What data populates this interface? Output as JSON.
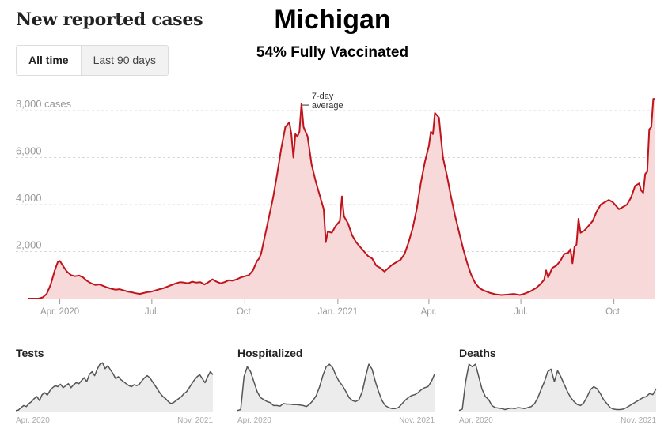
{
  "header": {
    "title": "New reported cases",
    "state": "Michigan",
    "vaccination": "54% Fully Vaccinated"
  },
  "toggle": {
    "options": [
      {
        "label": "All time",
        "active": true
      },
      {
        "label": "Last 90 days",
        "active": false
      }
    ]
  },
  "colors": {
    "line": "#c0141c",
    "fill": "#f8d9d9",
    "small_line": "#555555",
    "small_fill": "#ececec",
    "grid": "#d8d8d8",
    "axis_text": "#999999"
  },
  "chart_data": [
    {
      "type": "area",
      "title": "New reported cases",
      "ylabel": "cases",
      "ylim": [
        0,
        8000
      ],
      "y_ticks": [
        {
          "value": 2000,
          "label": "2,000"
        },
        {
          "value": 4000,
          "label": "4,000"
        },
        {
          "value": 6000,
          "label": "6,000"
        },
        {
          "value": 8000,
          "label": "8,000 cases"
        }
      ],
      "x_ticks": [
        {
          "day": 31,
          "label": "Apr. 2020"
        },
        {
          "day": 122,
          "label": "Jul."
        },
        {
          "day": 214,
          "label": "Oct."
        },
        {
          "day": 306,
          "label": "Jan. 2021"
        },
        {
          "day": 396,
          "label": "Apr."
        },
        {
          "day": 487,
          "label": "Jul."
        },
        {
          "day": 579,
          "label": "Oct."
        }
      ],
      "x_domain_days": [
        0,
        627
      ],
      "x_note": "day 0 = Mar. 1, 2020",
      "annotation": {
        "text": [
          "7-day",
          "average"
        ],
        "day": 270,
        "value": 8300
      },
      "grid": true,
      "series": [
        {
          "name": "7-day average",
          "points": [
            [
              0,
              0
            ],
            [
              10,
              0
            ],
            [
              14,
              50
            ],
            [
              18,
              200
            ],
            [
              22,
              600
            ],
            [
              26,
              1200
            ],
            [
              29,
              1550
            ],
            [
              31,
              1600
            ],
            [
              34,
              1400
            ],
            [
              38,
              1150
            ],
            [
              42,
              1000
            ],
            [
              46,
              950
            ],
            [
              50,
              980
            ],
            [
              54,
              900
            ],
            [
              58,
              750
            ],
            [
              62,
              650
            ],
            [
              66,
              580
            ],
            [
              70,
              600
            ],
            [
              74,
              540
            ],
            [
              78,
              470
            ],
            [
              82,
              420
            ],
            [
              86,
              380
            ],
            [
              90,
              400
            ],
            [
              94,
              350
            ],
            [
              98,
              300
            ],
            [
              102,
              270
            ],
            [
              106,
              230
            ],
            [
              110,
              200
            ],
            [
              114,
              240
            ],
            [
              118,
              280
            ],
            [
              122,
              300
            ],
            [
              128,
              380
            ],
            [
              134,
              450
            ],
            [
              140,
              550
            ],
            [
              146,
              650
            ],
            [
              150,
              700
            ],
            [
              154,
              680
            ],
            [
              158,
              650
            ],
            [
              162,
              720
            ],
            [
              166,
              680
            ],
            [
              170,
              700
            ],
            [
              174,
              600
            ],
            [
              178,
              700
            ],
            [
              182,
              820
            ],
            [
              186,
              720
            ],
            [
              190,
              650
            ],
            [
              194,
              700
            ],
            [
              198,
              780
            ],
            [
              202,
              760
            ],
            [
              206,
              820
            ],
            [
              210,
              900
            ],
            [
              214,
              950
            ],
            [
              218,
              1000
            ],
            [
              222,
              1200
            ],
            [
              226,
              1600
            ],
            [
              228,
              1700
            ],
            [
              230,
              1900
            ],
            [
              234,
              2700
            ],
            [
              238,
              3500
            ],
            [
              242,
              4300
            ],
            [
              246,
              5300
            ],
            [
              250,
              6400
            ],
            [
              254,
              7300
            ],
            [
              258,
              7500
            ],
            [
              260,
              7000
            ],
            [
              262,
              6000
            ],
            [
              264,
              7000
            ],
            [
              266,
              6900
            ],
            [
              268,
              7100
            ],
            [
              270,
              8300
            ],
            [
              272,
              7300
            ],
            [
              276,
              6900
            ],
            [
              280,
              5700
            ],
            [
              284,
              5000
            ],
            [
              288,
              4400
            ],
            [
              292,
              3800
            ],
            [
              294,
              2400
            ],
            [
              296,
              2850
            ],
            [
              300,
              2800
            ],
            [
              304,
              3100
            ],
            [
              308,
              3300
            ],
            [
              310,
              4350
            ],
            [
              312,
              3500
            ],
            [
              316,
              3200
            ],
            [
              320,
              2700
            ],
            [
              324,
              2400
            ],
            [
              328,
              2200
            ],
            [
              332,
              2000
            ],
            [
              336,
              1800
            ],
            [
              340,
              1700
            ],
            [
              344,
              1400
            ],
            [
              348,
              1300
            ],
            [
              352,
              1150
            ],
            [
              356,
              1300
            ],
            [
              360,
              1450
            ],
            [
              364,
              1550
            ],
            [
              368,
              1650
            ],
            [
              372,
              1900
            ],
            [
              376,
              2400
            ],
            [
              380,
              3000
            ],
            [
              384,
              3800
            ],
            [
              388,
              4900
            ],
            [
              392,
              5800
            ],
            [
              396,
              6500
            ],
            [
              398,
              7100
            ],
            [
              400,
              7000
            ],
            [
              402,
              7900
            ],
            [
              404,
              7800
            ],
            [
              406,
              7700
            ],
            [
              408,
              6800
            ],
            [
              410,
              6000
            ],
            [
              414,
              5200
            ],
            [
              418,
              4300
            ],
            [
              422,
              3500
            ],
            [
              426,
              2800
            ],
            [
              430,
              2100
            ],
            [
              434,
              1500
            ],
            [
              438,
              1000
            ],
            [
              442,
              650
            ],
            [
              446,
              450
            ],
            [
              450,
              350
            ],
            [
              456,
              250
            ],
            [
              462,
              180
            ],
            [
              468,
              150
            ],
            [
              474,
              170
            ],
            [
              480,
              200
            ],
            [
              486,
              150
            ],
            [
              490,
              200
            ],
            [
              496,
              300
            ],
            [
              502,
              450
            ],
            [
              506,
              600
            ],
            [
              510,
              800
            ],
            [
              512,
              1200
            ],
            [
              514,
              900
            ],
            [
              518,
              1300
            ],
            [
              522,
              1400
            ],
            [
              526,
              1600
            ],
            [
              530,
              1900
            ],
            [
              534,
              1950
            ],
            [
              536,
              2100
            ],
            [
              538,
              1500
            ],
            [
              540,
              2200
            ],
            [
              542,
              2300
            ],
            [
              544,
              3400
            ],
            [
              546,
              2800
            ],
            [
              550,
              2900
            ],
            [
              554,
              3100
            ],
            [
              558,
              3300
            ],
            [
              562,
              3700
            ],
            [
              566,
              4000
            ],
            [
              570,
              4100
            ],
            [
              574,
              4200
            ],
            [
              578,
              4100
            ],
            [
              580,
              4000
            ],
            [
              584,
              3800
            ],
            [
              588,
              3900
            ],
            [
              592,
              4000
            ],
            [
              596,
              4300
            ],
            [
              600,
              4800
            ],
            [
              604,
              4900
            ],
            [
              606,
              4600
            ],
            [
              608,
              4500
            ],
            [
              610,
              5300
            ],
            [
              612,
              5400
            ],
            [
              614,
              7200
            ],
            [
              616,
              7300
            ],
            [
              618,
              8500
            ],
            [
              620,
              8500
            ]
          ]
        }
      ]
    },
    {
      "type": "area",
      "title": "Tests",
      "x_labels": [
        "Apr. 2020",
        "Nov. 2021"
      ],
      "normalized": true,
      "values": [
        0.02,
        0.03,
        0.08,
        0.12,
        0.1,
        0.16,
        0.2,
        0.26,
        0.3,
        0.22,
        0.34,
        0.38,
        0.33,
        0.42,
        0.48,
        0.52,
        0.5,
        0.55,
        0.48,
        0.52,
        0.56,
        0.48,
        0.54,
        0.58,
        0.56,
        0.62,
        0.68,
        0.6,
        0.75,
        0.8,
        0.72,
        0.85,
        0.95,
        0.98,
        0.86,
        0.92,
        0.84,
        0.76,
        0.66,
        0.7,
        0.64,
        0.6,
        0.56,
        0.52,
        0.5,
        0.54,
        0.52,
        0.55,
        0.62,
        0.68,
        0.72,
        0.68,
        0.6,
        0.52,
        0.44,
        0.36,
        0.3,
        0.26,
        0.2,
        0.16,
        0.18,
        0.22,
        0.26,
        0.3,
        0.36,
        0.4,
        0.48,
        0.56,
        0.64,
        0.7,
        0.74,
        0.66,
        0.58,
        0.7,
        0.8,
        0.74
      ]
    },
    {
      "type": "area",
      "title": "Hospitalized",
      "x_labels": [
        "Apr. 2020",
        "Nov. 2021"
      ],
      "normalized": true,
      "values": [
        0.02,
        0.04,
        0.7,
        0.9,
        0.8,
        0.6,
        0.4,
        0.28,
        0.24,
        0.2,
        0.18,
        0.12,
        0.12,
        0.11,
        0.16,
        0.15,
        0.15,
        0.14,
        0.14,
        0.13,
        0.12,
        0.1,
        0.15,
        0.22,
        0.32,
        0.5,
        0.72,
        0.9,
        0.95,
        0.88,
        0.72,
        0.6,
        0.52,
        0.4,
        0.28,
        0.22,
        0.2,
        0.24,
        0.4,
        0.7,
        0.95,
        0.85,
        0.6,
        0.4,
        0.22,
        0.12,
        0.08,
        0.06,
        0.06,
        0.08,
        0.15,
        0.22,
        0.28,
        0.32,
        0.34,
        0.38,
        0.44,
        0.48,
        0.5,
        0.6,
        0.75
      ]
    },
    {
      "type": "area",
      "title": "Deaths",
      "x_labels": [
        "Apr. 2020",
        "Nov. 2021"
      ],
      "normalized": true,
      "values": [
        0.02,
        0.05,
        0.6,
        0.95,
        0.9,
        0.95,
        0.7,
        0.45,
        0.3,
        0.24,
        0.12,
        0.08,
        0.07,
        0.06,
        0.04,
        0.06,
        0.07,
        0.06,
        0.08,
        0.07,
        0.06,
        0.08,
        0.1,
        0.16,
        0.28,
        0.45,
        0.6,
        0.8,
        0.85,
        0.6,
        0.82,
        0.7,
        0.55,
        0.4,
        0.28,
        0.2,
        0.14,
        0.12,
        0.18,
        0.3,
        0.44,
        0.5,
        0.46,
        0.36,
        0.24,
        0.16,
        0.08,
        0.05,
        0.04,
        0.04,
        0.05,
        0.08,
        0.12,
        0.16,
        0.2,
        0.24,
        0.28,
        0.3,
        0.36,
        0.34,
        0.46
      ]
    }
  ]
}
